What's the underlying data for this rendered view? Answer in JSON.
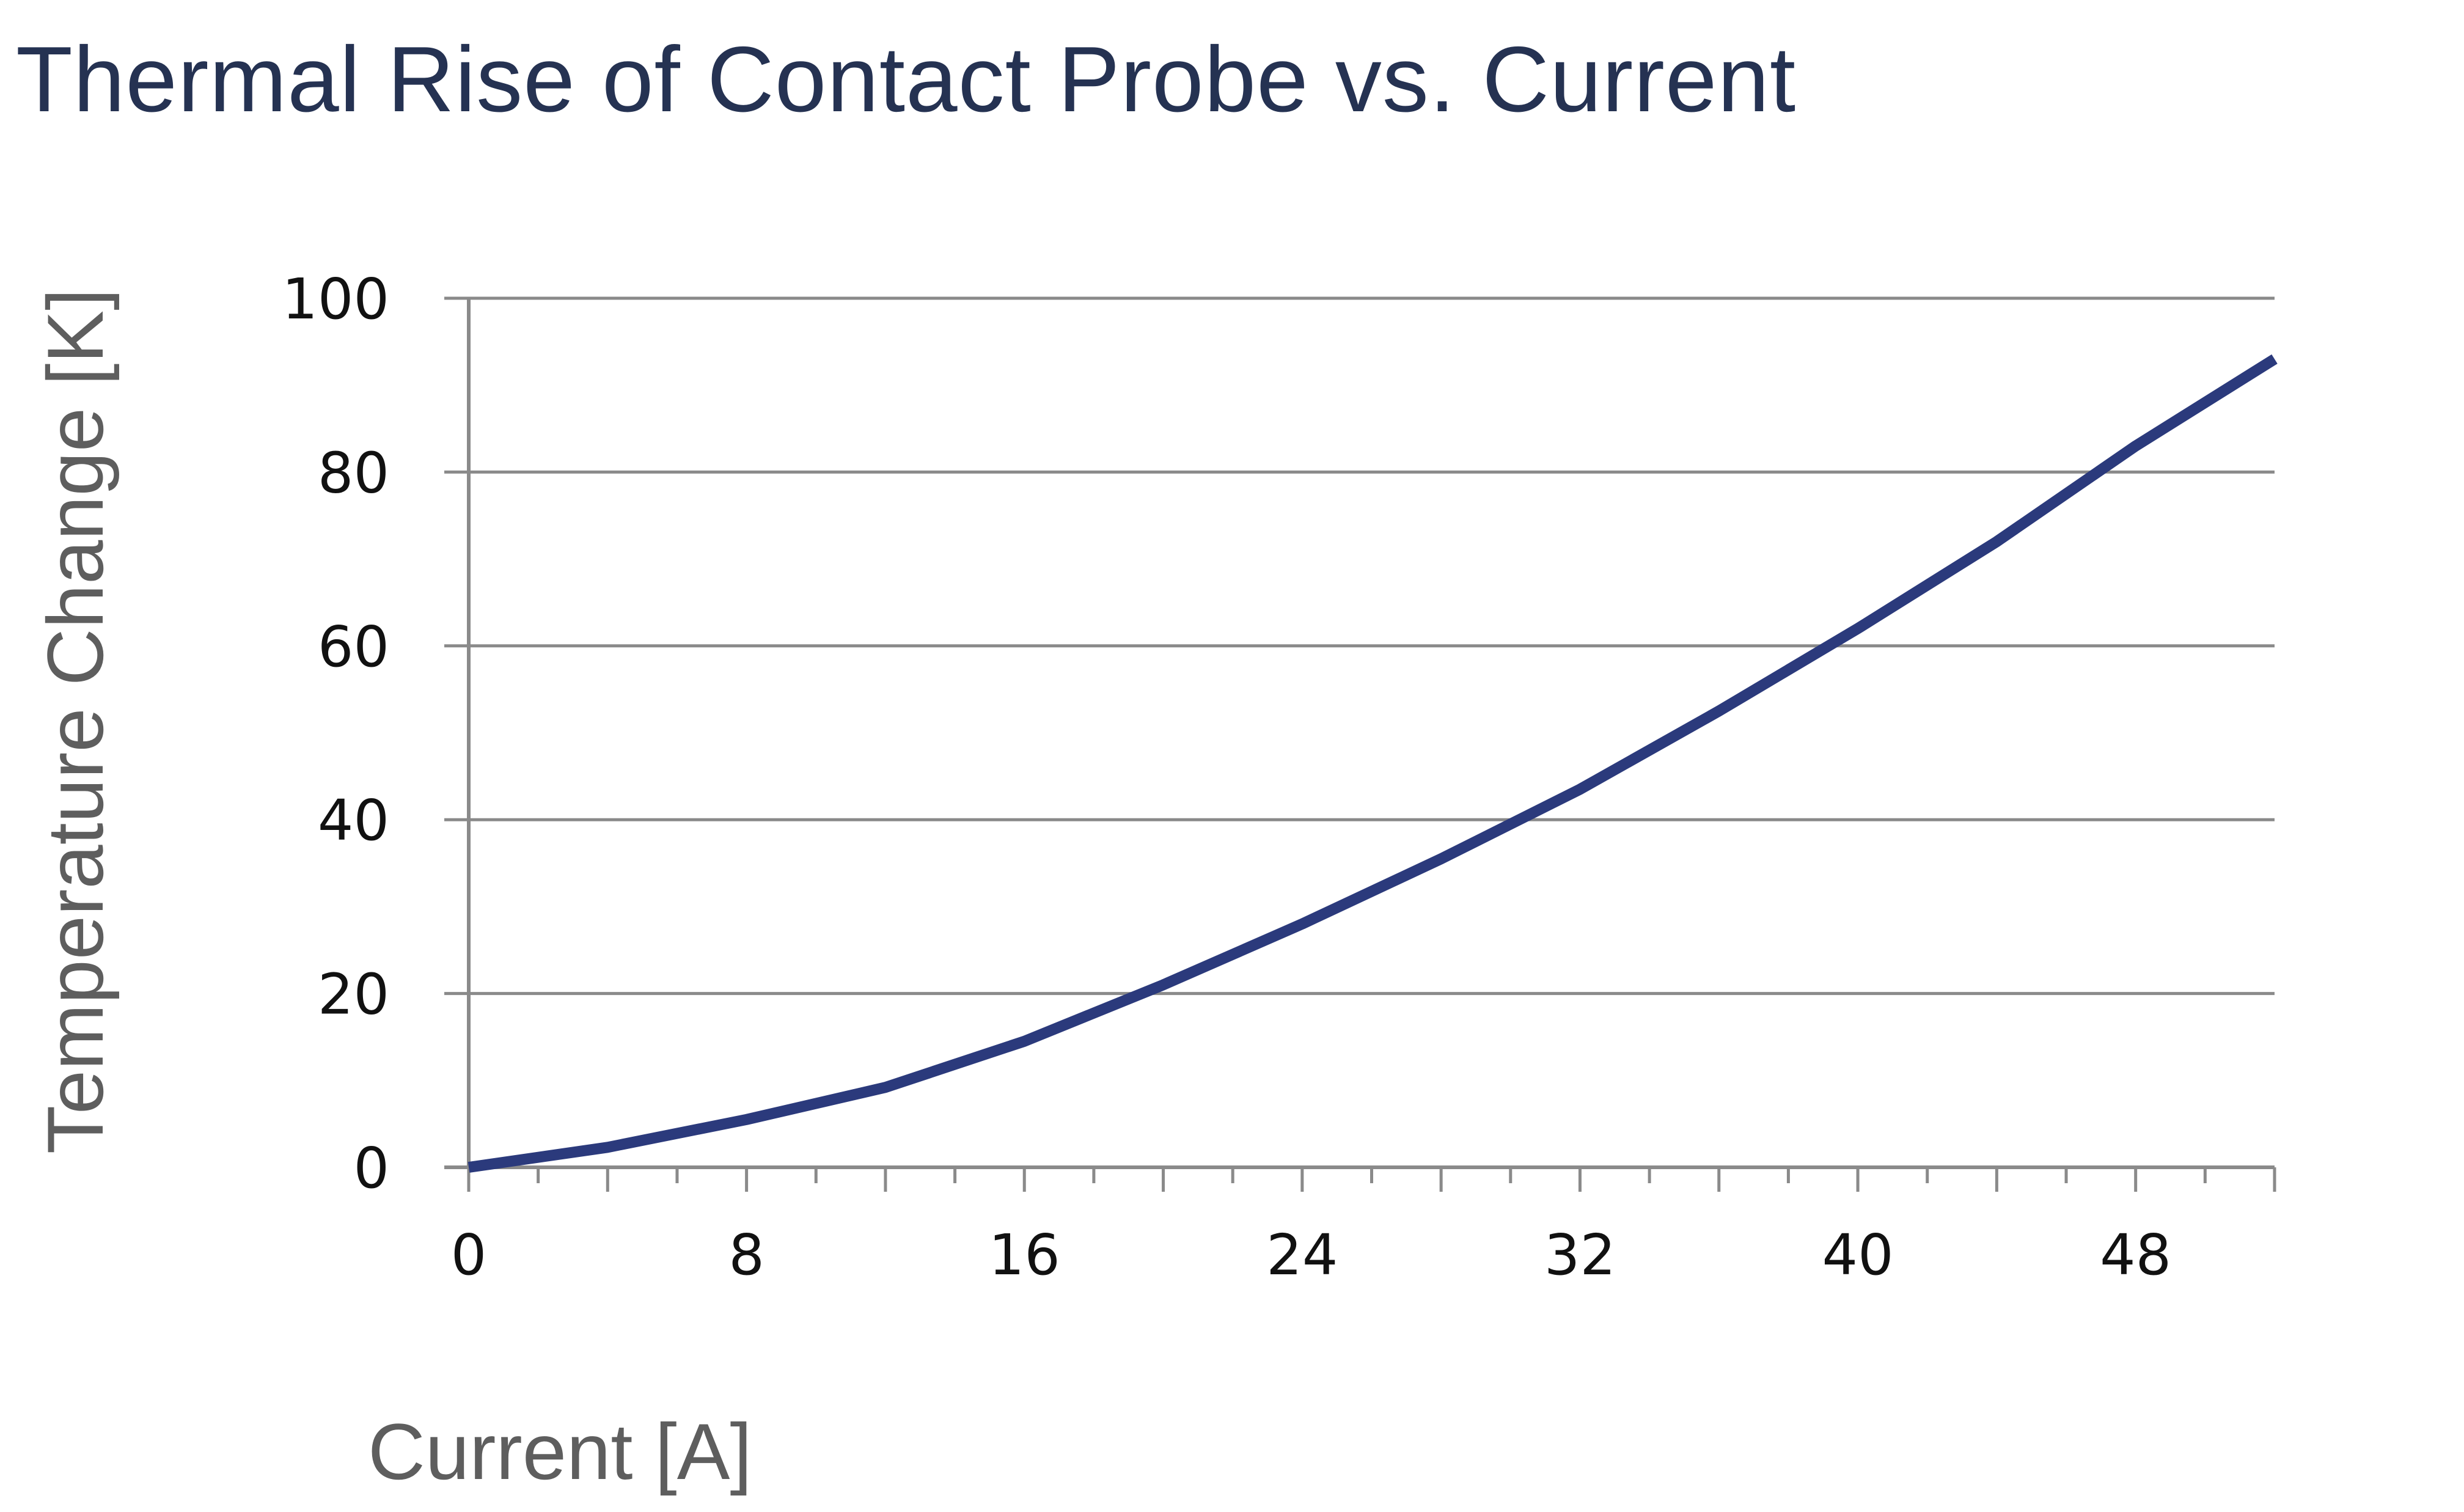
{
  "chart_data": {
    "type": "line",
    "title": "Thermal Rise of Contact Probe vs. Current",
    "xlabel": "Current [A]",
    "ylabel": "Temperature Change [K]",
    "xlim": [
      0,
      52
    ],
    "ylim": [
      0,
      100
    ],
    "x_ticks": [
      0,
      8,
      16,
      24,
      32,
      40,
      48
    ],
    "x_minor_step": 2,
    "y_ticks": [
      0,
      20,
      40,
      60,
      80,
      100
    ],
    "grid": "horizontal",
    "legend": "none",
    "series": [
      {
        "color": "#2b3a7c",
        "points": [
          [
            0,
            0
          ],
          [
            4,
            2.3
          ],
          [
            8,
            5.5
          ],
          [
            12,
            9.2
          ],
          [
            16,
            14.5
          ],
          [
            20,
            21
          ],
          [
            24,
            28
          ],
          [
            28,
            35.5
          ],
          [
            32,
            43.5
          ],
          [
            36,
            52.5
          ],
          [
            40,
            62
          ],
          [
            44,
            72
          ],
          [
            48,
            83
          ],
          [
            52,
            93
          ]
        ]
      }
    ]
  }
}
